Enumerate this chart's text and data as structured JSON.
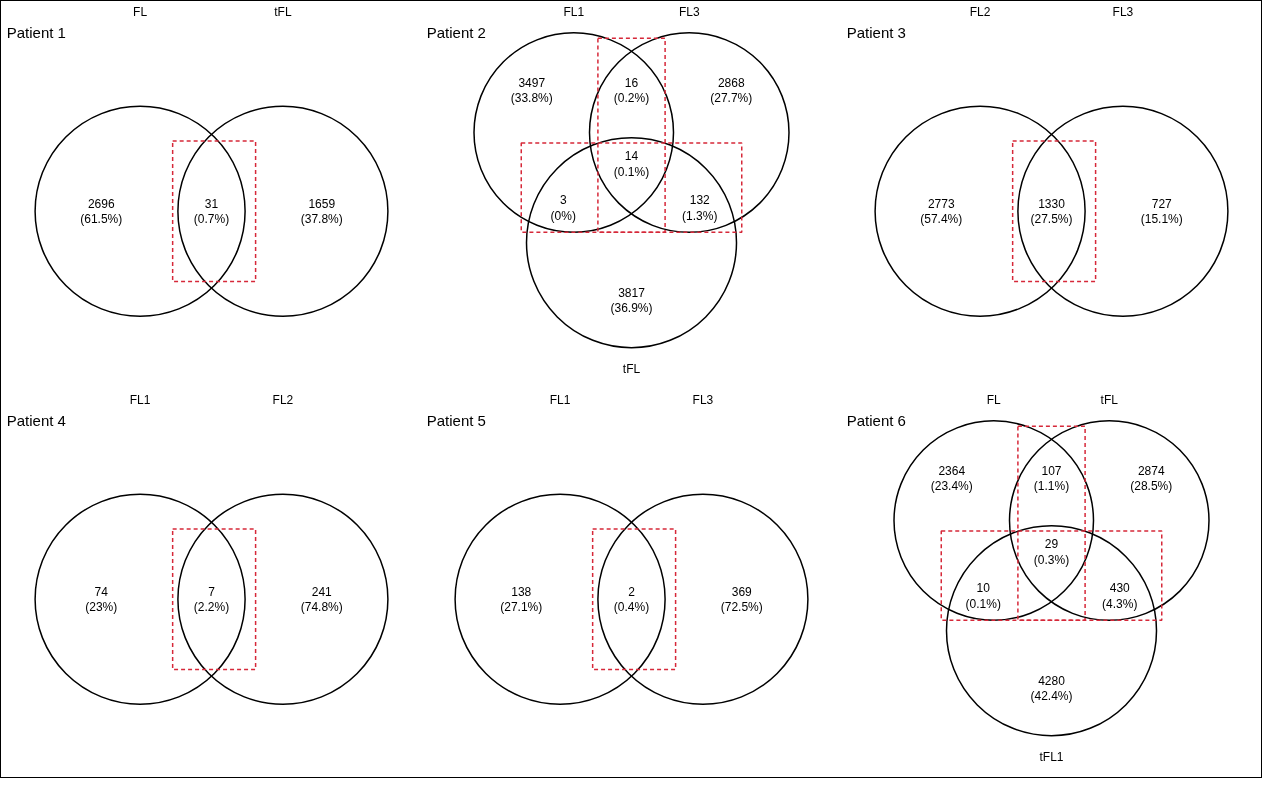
{
  "chart_data": [
    {
      "type": "other",
      "title": "Patient 1",
      "annotations": [
        "FL",
        "tFL"
      ],
      "categories": [
        null,
        null,
        null
      ],
      "values": [
        2696,
        31,
        1659
      ],
      "value_labels": [
        "2696\n(61.5%)",
        "31\n(0.7%)",
        "1659\n(37.8%)"
      ],
      "bands": [
        {
          "axis": "x",
          "color": "#d62839"
        }
      ]
    },
    {
      "type": "other",
      "title": "Patient 2",
      "annotations": [
        "FL1",
        "FL3",
        "tFL"
      ],
      "categories": [
        null,
        null,
        null,
        null,
        null,
        null,
        null
      ],
      "values": [
        3497,
        16,
        2868,
        14,
        3,
        132,
        3817
      ],
      "value_labels": [
        "3497\n(33.8%)",
        "16\n(0.2%)",
        "2868\n(27.7%)",
        "14\n(0.1%)",
        "3\n(0%)",
        "132\n(1.3%)",
        "3817\n(36.9%)"
      ],
      "bands": [
        {
          "axis": "x",
          "color": "#d62839"
        },
        {
          "axis": "y",
          "color": "#d62839"
        }
      ]
    },
    {
      "type": "other",
      "title": "Patient 3",
      "annotations": [
        "FL2",
        "FL3"
      ],
      "categories": [
        null,
        null,
        null
      ],
      "values": [
        2773,
        1330,
        727
      ],
      "value_labels": [
        "2773\n(57.4%)",
        "1330\n(27.5%)",
        "727\n(15.1%)"
      ],
      "bands": [
        {
          "axis": "x",
          "color": "#d62839"
        }
      ]
    },
    {
      "type": "other",
      "title": "Patient 4",
      "annotations": [
        "FL1",
        "FL2"
      ],
      "categories": [
        null,
        null,
        null
      ],
      "values": [
        74,
        7,
        241
      ],
      "value_labels": [
        "74\n(23%)",
        "7\n(2.2%)",
        "241\n(74.8%)"
      ],
      "bands": [
        {
          "axis": "x",
          "color": "#d62839"
        }
      ]
    },
    {
      "type": "other",
      "title": "Patient 5",
      "annotations": [
        "FL1",
        "FL3"
      ],
      "categories": [
        null,
        null,
        null
      ],
      "values": [
        138,
        2,
        369
      ],
      "value_labels": [
        "138\n(27.1%)",
        "2\n(0.4%)",
        "369\n(72.5%)"
      ],
      "bands": [
        {
          "axis": "x",
          "color": "#d62839"
        }
      ]
    },
    {
      "type": "other",
      "title": "Patient 6",
      "annotations": [
        "FL",
        "tFL",
        "tFL1"
      ],
      "categories": [
        null,
        null,
        null,
        null,
        null,
        null,
        null
      ],
      "values": [
        2364,
        107,
        2874,
        29,
        10,
        430,
        4280
      ],
      "value_labels": [
        "2364\n(23.4%)",
        "107\n(1.1%)",
        "2874\n(28.5%)",
        "29\n(0.3%)",
        "10\n(0.1%)",
        "430\n(4.3%)",
        "4280\n(42.4%)"
      ],
      "bands": [
        {
          "axis": "x",
          "color": "#d62839"
        },
        {
          "axis": "y",
          "color": "#d62839"
        }
      ]
    }
  ]
}
